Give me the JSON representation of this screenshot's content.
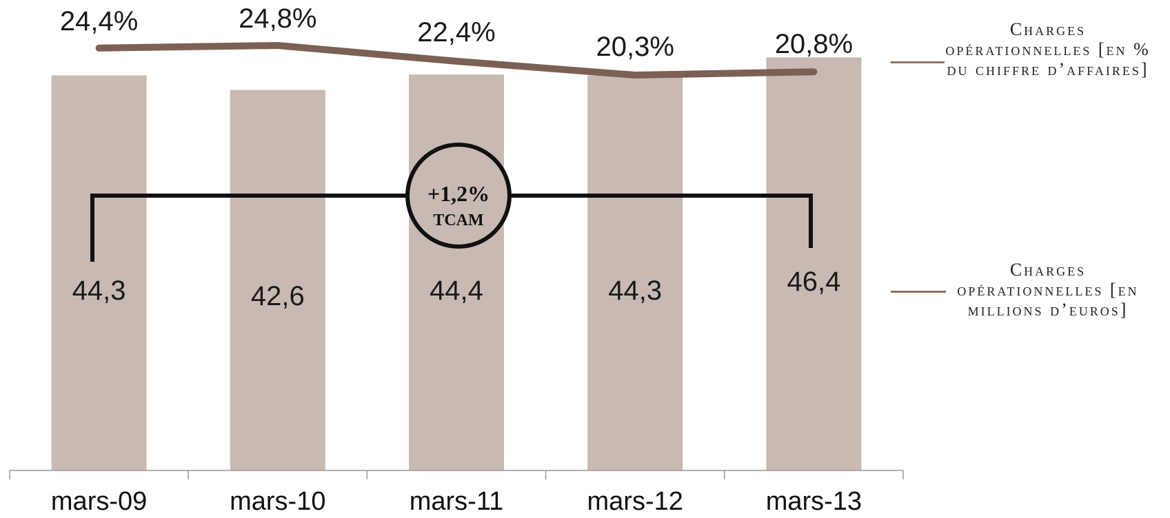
{
  "chart_data": {
    "type": "bar",
    "categories": [
      "mars-09",
      "mars-10",
      "mars-11",
      "mars-12",
      "mars-13"
    ],
    "series": [
      {
        "name": "Charges opérationnelles [en millions d’euros]",
        "type": "bar",
        "values": [
          44.3,
          42.6,
          44.4,
          44.3,
          46.4
        ],
        "labels": [
          "44,3",
          "42,6",
          "44,4",
          "44,3",
          "46,4"
        ],
        "color": "#c8bab2"
      },
      {
        "name": "Charges opérationnelles [en % du chiffre d’affaires]",
        "type": "line",
        "values": [
          24.4,
          24.8,
          22.4,
          20.3,
          20.8
        ],
        "labels": [
          "24,4%",
          "24,8%",
          "22,4%",
          "20,3%",
          "20,8%"
        ],
        "color": "#7b6055"
      }
    ],
    "annotation": {
      "value": "+1,2%",
      "label": "TCAM",
      "from": "mars-09",
      "to": "mars-13"
    },
    "legend_position": "right",
    "grid": false
  },
  "legend": {
    "line": "Charges opérationnelles [en % du chiffre d’affaires]",
    "bar": "Charges opérationnelles [en millions d’euros]"
  }
}
